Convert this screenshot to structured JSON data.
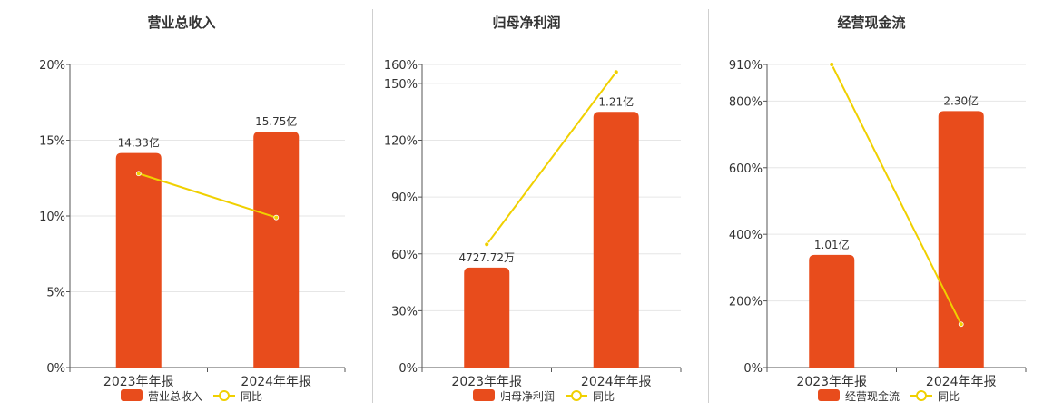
{
  "colors": {
    "bar": "#e84c1c",
    "line": "#f0d000",
    "grid": "#e6e6e6",
    "axis": "#555555"
  },
  "chart_data": [
    {
      "type": "bar",
      "title": "营业总收入",
      "categories": [
        "2023年年报",
        "2024年年报"
      ],
      "series": [
        {
          "name": "营业总收入",
          "values": [
            14.33,
            15.75
          ],
          "labels": [
            "14.33亿",
            "15.75亿"
          ]
        },
        {
          "name": "同比",
          "type": "line",
          "values": [
            12.8,
            9.9
          ]
        }
      ],
      "y_ticks": [
        "0%",
        "5%",
        "10%",
        "15%",
        "20%"
      ],
      "ylim": [
        0,
        20
      ],
      "bar_scale_max": 20.25,
      "legend": "bottom",
      "grid": true
    },
    {
      "type": "bar",
      "title": "归母净利润",
      "categories": [
        "2023年年报",
        "2024年年报"
      ],
      "series": [
        {
          "name": "归母净利润",
          "values": [
            0.4728,
            1.21
          ],
          "labels": [
            "4727.72万",
            "1.21亿"
          ]
        },
        {
          "name": "同比",
          "type": "line",
          "values": [
            65,
            156
          ]
        }
      ],
      "y_ticks": [
        "0%",
        "30%",
        "60%",
        "90%",
        "120%",
        "150%",
        "160%"
      ],
      "ylim": [
        0,
        160
      ],
      "bar_scale_max": 1.4345,
      "legend": "bottom",
      "grid": true
    },
    {
      "type": "bar",
      "title": "经营现金流",
      "categories": [
        "2023年年报",
        "2024年年报"
      ],
      "series": [
        {
          "name": "经营现金流",
          "values": [
            1.01,
            2.3
          ],
          "labels": [
            "1.01亿",
            "2.30亿"
          ]
        },
        {
          "name": "同比",
          "type": "line",
          "values": [
            910,
            130
          ]
        }
      ],
      "y_ticks": [
        "0%",
        "200%",
        "400%",
        "600%",
        "800%",
        "910%"
      ],
      "ylim": [
        0,
        910
      ],
      "bar_scale_max": 2.7175,
      "legend": "bottom",
      "grid": true
    }
  ]
}
